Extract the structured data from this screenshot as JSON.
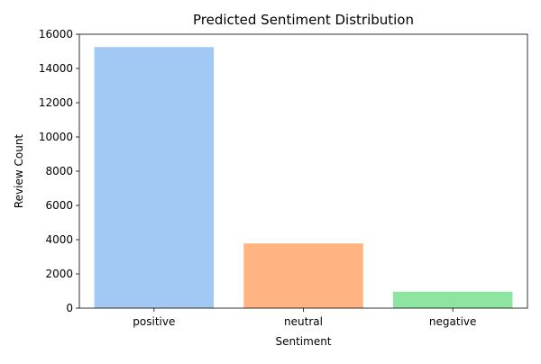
{
  "chart_data": {
    "type": "bar",
    "title": "Predicted Sentiment Distribution",
    "xlabel": "Sentiment",
    "ylabel": "Review Count",
    "categories": [
      "positive",
      "neutral",
      "negative"
    ],
    "values": [
      15250,
      3780,
      960
    ],
    "colors": [
      "#a1c9f4",
      "#ffb482",
      "#8de5a1"
    ],
    "ylim": [
      0,
      16000
    ],
    "yticks": [
      0,
      2000,
      4000,
      6000,
      8000,
      10000,
      12000,
      14000,
      16000
    ],
    "grid": false,
    "legend": "none"
  }
}
